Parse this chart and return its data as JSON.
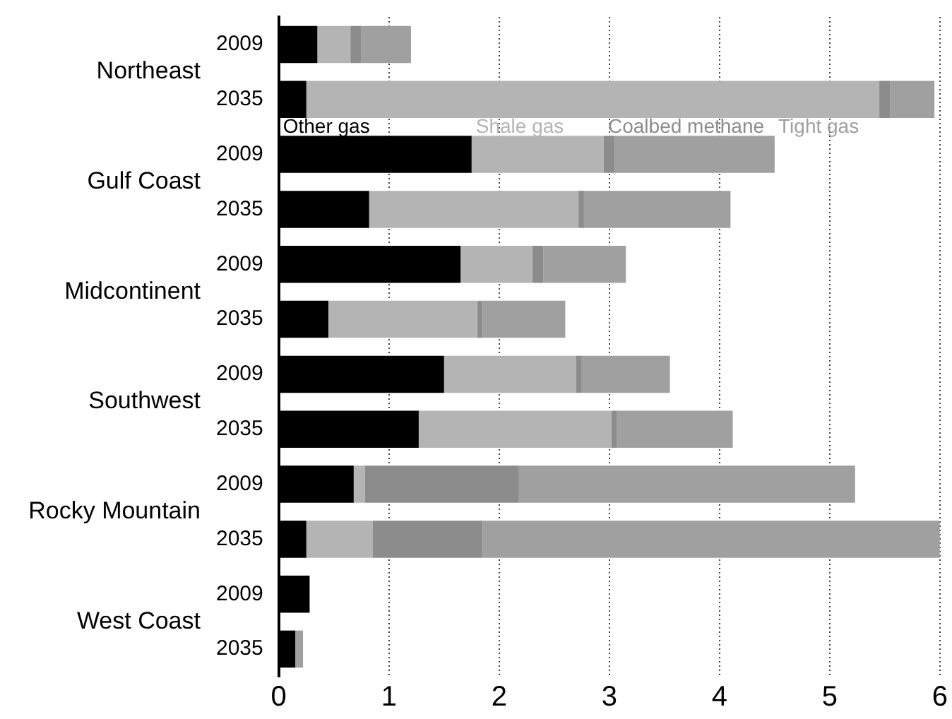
{
  "chart_data": {
    "type": "bar",
    "orientation": "horizontal",
    "stacked": true,
    "categories": [
      "2009",
      "2035",
      "2009",
      "2035",
      "2009",
      "2035",
      "2009",
      "2035",
      "2009",
      "2035",
      "2009",
      "2035"
    ],
    "annotations": [
      "Northeast",
      "Gulf Coast",
      "Midcontinent",
      "Southwest",
      "Rocky Mountain",
      "West Coast"
    ],
    "series": [
      {
        "name": "Other gas",
        "color": "#000000",
        "values": [
          0.35,
          0.25,
          1.75,
          0.82,
          1.65,
          0.45,
          1.5,
          1.27,
          0.68,
          0.25,
          0.28,
          0.15
        ]
      },
      {
        "name": "Shale gas",
        "color": "#b4b4b4",
        "values": [
          0.3,
          5.2,
          1.2,
          1.9,
          0.65,
          1.35,
          1.2,
          1.75,
          0.1,
          0.6,
          0,
          0
        ]
      },
      {
        "name": "Coalbed methane",
        "color": "#8c8c8c",
        "values": [
          0.1,
          0.1,
          0.1,
          0.05,
          0.1,
          0.05,
          0.05,
          0.05,
          1.4,
          1.0,
          0,
          0
        ]
      },
      {
        "name": "Tight gas",
        "color": "#a0a0a0",
        "values": [
          0.45,
          0.4,
          1.45,
          1.33,
          0.75,
          0.75,
          0.8,
          1.05,
          3.05,
          4.15,
          0,
          0.07
        ]
      }
    ],
    "xlim": [
      0,
      6
    ],
    "xticks": [
      0,
      1,
      2,
      3,
      4,
      5,
      6
    ],
    "grid": "x"
  }
}
